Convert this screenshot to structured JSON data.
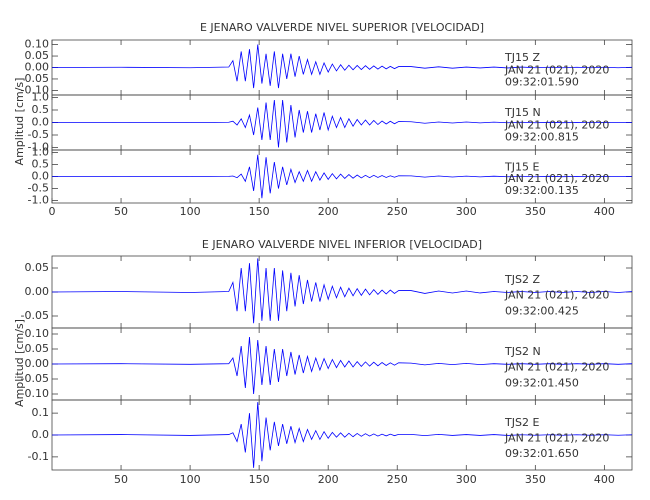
{
  "chart_data": [
    {
      "type": "line",
      "title": "E JENARO VALVERDE NIVEL SUPERIOR [VELOCIDAD]",
      "ylabel": "Amplitud [cm/s]",
      "xlim": [
        0,
        420
      ],
      "xticks": [
        0,
        50,
        100,
        150,
        200,
        250,
        300,
        350,
        400
      ],
      "x": [
        0,
        50,
        100,
        128,
        131,
        134,
        137,
        140,
        143,
        146,
        149,
        152,
        155,
        158,
        161,
        164,
        167,
        170,
        173,
        176,
        179,
        182,
        185,
        188,
        191,
        194,
        197,
        200,
        203,
        206,
        209,
        212,
        215,
        218,
        221,
        224,
        227,
        230,
        233,
        236,
        239,
        242,
        245,
        248,
        251,
        260,
        270,
        280,
        290,
        300,
        310,
        320,
        330,
        340,
        350,
        360,
        370,
        380,
        390,
        400,
        410,
        420
      ],
      "panels": [
        {
          "ylim": [
            -0.12,
            0.12
          ],
          "yticks": [
            {
              "value": 0.1,
              "label": "0.10"
            },
            0.05,
            {
              "value": 0,
              "label": "0.00"
            },
            -0.05,
            {
              "value": -0.1,
              "label": "-0.10"
            }
          ],
          "date": "JAN 21 (021), 2020",
          "time": "09:32:01.590",
          "series": [
            {
              "name": "TJ15   Z",
              "color": "#0000ff",
              "values": [
                0,
                0.001,
                -0.001,
                0.002,
                0.03,
                -0.06,
                0.07,
                -0.06,
                0.08,
                -0.09,
                0.1,
                -0.07,
                0.06,
                -0.08,
                0.07,
                -0.09,
                0.06,
                -0.05,
                0.06,
                -0.04,
                0.05,
                -0.03,
                0.035,
                -0.03,
                0.025,
                -0.03,
                0.02,
                -0.02,
                0.015,
                -0.015,
                0.012,
                -0.012,
                0.01,
                -0.01,
                0.009,
                -0.009,
                0.008,
                -0.008,
                0.007,
                -0.007,
                0.006,
                -0.006,
                0.005,
                -0.005,
                0.004,
                0.004,
                -0.003,
                0.003,
                -0.003,
                0.002,
                -0.002,
                0.002,
                -0.002,
                0.002,
                -0.001,
                0.001,
                -0.001,
                0.001,
                -0.001,
                0.001,
                -0.001,
                0.001
              ]
            }
          ]
        },
        {
          "ylim": [
            -1.1,
            1.1
          ],
          "yticks": [
            {
              "value": 1,
              "label": "1.0"
            },
            0.5,
            {
              "value": 0,
              "label": "0.0"
            },
            -0.5,
            {
              "value": -1,
              "label": "-1.0"
            }
          ],
          "date": "JAN 21 (021), 2020",
          "time": "09:32:00.815",
          "series": [
            {
              "name": "TJ15   N",
              "color": "#0000ff",
              "values": [
                0,
                0.005,
                -0.005,
                0.01,
                0.05,
                -0.1,
                0.15,
                -0.2,
                0.3,
                -0.5,
                0.6,
                -0.7,
                0.8,
                -0.7,
                0.9,
                -1.0,
                0.9,
                -0.8,
                0.7,
                -0.6,
                0.5,
                -0.4,
                0.45,
                -0.4,
                0.35,
                -0.3,
                0.4,
                -0.3,
                0.25,
                -0.2,
                0.2,
                -0.2,
                0.15,
                -0.15,
                0.12,
                -0.1,
                0.1,
                -0.1,
                0.08,
                -0.08,
                0.06,
                -0.06,
                0.05,
                -0.05,
                0.04,
                0.03,
                -0.03,
                0.02,
                -0.02,
                0.02,
                -0.015,
                0.015,
                -0.01,
                0.01,
                -0.01,
                0.008,
                -0.008,
                0.006,
                -0.006,
                0.005,
                -0.005,
                0.004
              ]
            }
          ]
        },
        {
          "ylim": [
            -1.1,
            1.1
          ],
          "yticks": [
            {
              "value": 1,
              "label": "1.0"
            },
            0.5,
            {
              "value": 0,
              "label": "0.0"
            },
            -0.5,
            {
              "value": -1,
              "label": "-1.0"
            }
          ],
          "date": "JAN 21 (021), 2020",
          "time": "09:32:00.135",
          "series": [
            {
              "name": "TJ15   E",
              "color": "#0000ff",
              "values": [
                0,
                0.005,
                -0.005,
                0.005,
                0.02,
                -0.05,
                0.1,
                -0.2,
                0.4,
                -0.6,
                0.9,
                -0.9,
                0.8,
                -0.7,
                0.6,
                -0.5,
                0.4,
                -0.35,
                0.3,
                -0.25,
                0.2,
                -0.2,
                0.25,
                -0.2,
                0.2,
                -0.15,
                0.15,
                -0.12,
                0.12,
                -0.1,
                0.1,
                -0.08,
                0.08,
                -0.07,
                0.06,
                -0.06,
                0.05,
                -0.05,
                0.05,
                -0.04,
                0.04,
                -0.04,
                0.03,
                -0.03,
                0.03,
                0.025,
                -0.025,
                0.02,
                -0.02,
                0.015,
                -0.015,
                0.012,
                -0.01,
                0.01,
                -0.01,
                0.008,
                -0.008,
                0.006,
                -0.006,
                0.005,
                -0.005,
                0.004
              ]
            }
          ]
        }
      ]
    },
    {
      "type": "line",
      "title": "E JENARO VALVERDE NIVEL INFERIOR [VELOCIDAD]",
      "ylabel": "Amplitud [cm/s]",
      "xlim": [
        0,
        420
      ],
      "xticks": [
        50,
        100,
        150,
        200,
        250,
        300,
        350,
        400
      ],
      "x": [
        0,
        50,
        100,
        128,
        131,
        134,
        137,
        140,
        143,
        146,
        149,
        152,
        155,
        158,
        161,
        164,
        167,
        170,
        173,
        176,
        179,
        182,
        185,
        188,
        191,
        194,
        197,
        200,
        203,
        206,
        209,
        212,
        215,
        218,
        221,
        224,
        227,
        230,
        233,
        236,
        239,
        242,
        245,
        248,
        251,
        260,
        270,
        280,
        290,
        300,
        310,
        320,
        330,
        340,
        350,
        360,
        370,
        380,
        390,
        400,
        410,
        420
      ],
      "panels": [
        {
          "ylim": [
            -0.075,
            0.075
          ],
          "yticks": [
            0.05,
            {
              "value": 0,
              "label": "0.00"
            },
            -0.05
          ],
          "date": "JAN 21 (021), 2020",
          "time": "09:32:00.425",
          "series": [
            {
              "name": "TJS2   Z",
              "color": "#0000ff",
              "values": [
                0,
                0.001,
                -0.001,
                0.001,
                0.02,
                -0.04,
                0.05,
                -0.04,
                0.06,
                -0.065,
                0.07,
                -0.06,
                0.05,
                -0.06,
                0.05,
                -0.06,
                0.045,
                -0.04,
                0.04,
                -0.03,
                0.035,
                -0.025,
                0.025,
                -0.02,
                0.02,
                -0.02,
                0.015,
                -0.015,
                0.012,
                -0.012,
                0.01,
                -0.01,
                0.008,
                -0.008,
                0.007,
                -0.007,
                0.006,
                -0.006,
                0.005,
                -0.005,
                0.004,
                -0.004,
                0.004,
                -0.003,
                0.003,
                0.003,
                -0.003,
                0.002,
                -0.002,
                0.002,
                -0.002,
                0.001,
                -0.001,
                0.001,
                -0.001,
                0.001,
                -0.001,
                0.001,
                -0.001,
                0.001,
                -0.001,
                0.001
              ]
            }
          ]
        },
        {
          "ylim": [
            -0.12,
            0.12
          ],
          "yticks": [
            {
              "value": 0.1,
              "label": "0.10"
            },
            0.05,
            {
              "value": 0,
              "label": "0.00"
            },
            -0.05,
            {
              "value": -0.1,
              "label": "-0.10"
            }
          ],
          "date": "JAN 21 (021), 2020",
          "time": "09:32:01.450",
          "series": [
            {
              "name": "TJS2   N",
              "color": "#0000ff",
              "values": [
                0,
                0.001,
                -0.001,
                0.001,
                0.02,
                -0.04,
                0.06,
                -0.08,
                0.09,
                -0.1,
                0.08,
                -0.07,
                0.06,
                -0.07,
                0.05,
                -0.06,
                0.05,
                -0.04,
                0.04,
                -0.035,
                0.03,
                -0.03,
                0.025,
                -0.025,
                0.02,
                -0.02,
                0.018,
                -0.015,
                0.015,
                -0.012,
                0.012,
                -0.01,
                0.01,
                -0.01,
                0.008,
                -0.008,
                0.007,
                -0.007,
                0.006,
                -0.006,
                0.005,
                -0.005,
                0.004,
                -0.004,
                0.004,
                0.003,
                -0.003,
                0.002,
                -0.002,
                0.002,
                -0.002,
                0.001,
                -0.001,
                0.001,
                -0.001,
                0.001,
                -0.001,
                0.001,
                -0.001,
                0.001,
                -0.001,
                0.001
              ]
            }
          ]
        },
        {
          "ylim": [
            -0.16,
            0.16
          ],
          "yticks": [
            0.1,
            {
              "value": 0,
              "label": "0.0"
            },
            -0.1
          ],
          "date": "JAN 21 (021), 2020",
          "time": "09:32:01.650",
          "series": [
            {
              "name": "TJS2   E",
              "color": "#0000ff",
              "values": [
                0,
                0.002,
                -0.002,
                0.002,
                0.01,
                -0.03,
                0.05,
                -0.08,
                0.1,
                -0.15,
                0.15,
                -0.12,
                0.08,
                -0.07,
                0.06,
                -0.05,
                0.05,
                -0.04,
                0.04,
                -0.035,
                0.03,
                -0.03,
                0.025,
                -0.02,
                0.02,
                -0.02,
                0.015,
                -0.015,
                0.012,
                -0.01,
                0.01,
                -0.01,
                0.008,
                -0.008,
                0.007,
                -0.006,
                0.006,
                -0.005,
                0.005,
                -0.005,
                0.004,
                -0.004,
                0.004,
                -0.003,
                0.003,
                0.003,
                -0.003,
                0.003,
                -0.002,
                0.002,
                -0.002,
                0.002,
                -0.002,
                0.001,
                -0.001,
                0.001,
                -0.001,
                0.001,
                -0.001,
                0.001,
                -0.001,
                0.001
              ]
            }
          ]
        }
      ]
    }
  ]
}
